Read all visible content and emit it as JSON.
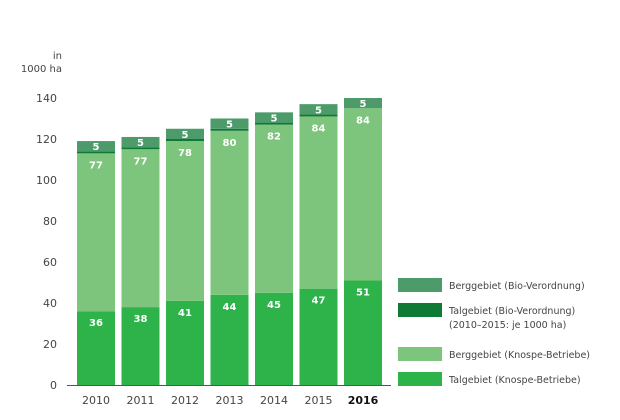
{
  "chart_data": {
    "type": "bar",
    "stacked": true,
    "title": "",
    "ylabel": "in 1000 ha",
    "ylabel_lines": [
      "in",
      "1000 ha"
    ],
    "xlabel": "",
    "ylim": [
      0,
      140
    ],
    "yticks": [
      0,
      20,
      40,
      60,
      80,
      100,
      120,
      140
    ],
    "grid": false,
    "legend_position": "bottom-right",
    "categories": [
      "2010",
      "2011",
      "2012",
      "2013",
      "2014",
      "2015",
      "2016"
    ],
    "highlight_category": "2016",
    "series": [
      {
        "name": "Talgebiet (Knospe-Betriebe)",
        "color": "#2db34a",
        "values": [
          36,
          38,
          41,
          44,
          45,
          47,
          51
        ],
        "labels": [
          "36",
          "38",
          "41",
          "44",
          "45",
          "47",
          "51"
        ]
      },
      {
        "name": "Berggebiet (Knospe-Betriebe)",
        "color": "#7dc57c",
        "values": [
          77,
          77,
          78,
          80,
          82,
          84,
          84
        ],
        "labels": [
          "77",
          "77",
          "78",
          "80",
          "82",
          "84",
          "84"
        ]
      },
      {
        "name": "Talgebiet (Bio-Verordnung)",
        "name_line2": "(2010–2015: je 1000 ha)",
        "color": "#0f7a36",
        "values": [
          1,
          1,
          1,
          1,
          1,
          1,
          0
        ],
        "labels": [
          "",
          "",
          "",
          "",
          "",
          "",
          ""
        ]
      },
      {
        "name": "Berggebiet (Bio-Verordnung)",
        "color": "#4d9b6a",
        "values": [
          5,
          5,
          5,
          5,
          5,
          5,
          5
        ],
        "labels": [
          "5",
          "5",
          "5",
          "5",
          "5",
          "5",
          "5"
        ]
      }
    ],
    "legend_order": [
      "Berggebiet (Bio-Verordnung)",
      "Talgebiet (Bio-Verordnung)",
      "Berggebiet (Knospe-Betriebe)",
      "Talgebiet (Knospe-Betriebe)"
    ]
  }
}
